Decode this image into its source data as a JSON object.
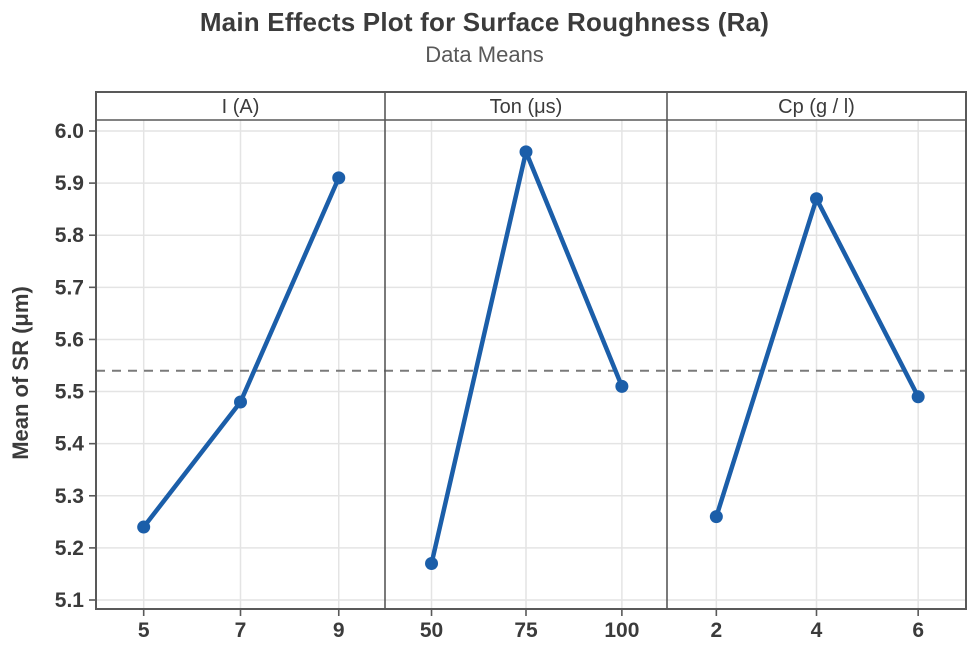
{
  "chart_data": {
    "type": "line",
    "title": "Main Effects Plot for Surface Roughness (Ra)",
    "subtitle": "Data Means",
    "ylabel": "Mean of SR (μm)",
    "xlabel": "",
    "ylim": [
      5.1,
      6.0
    ],
    "ytick_step": 0.1,
    "grand_mean": 5.54,
    "grid": true,
    "legend": "none",
    "panels": [
      {
        "label": "I (A)",
        "categories": [
          "5",
          "7",
          "9"
        ],
        "values": [
          5.24,
          5.48,
          5.91
        ]
      },
      {
        "label": "Ton (μs)",
        "categories": [
          "50",
          "75",
          "100"
        ],
        "values": [
          5.17,
          5.96,
          5.51
        ]
      },
      {
        "label": "Cp (g / l)",
        "categories": [
          "2",
          "4",
          "6"
        ],
        "values": [
          5.26,
          5.87,
          5.49
        ]
      }
    ],
    "colors": {
      "line": "#1b5ea9",
      "marker": "#1b5ea9",
      "frame": "#595959",
      "grid": "#e4e4e4",
      "mean_line": "#7a7a7a",
      "text": "#3b3b3b",
      "subtitle_text": "#595959"
    }
  }
}
